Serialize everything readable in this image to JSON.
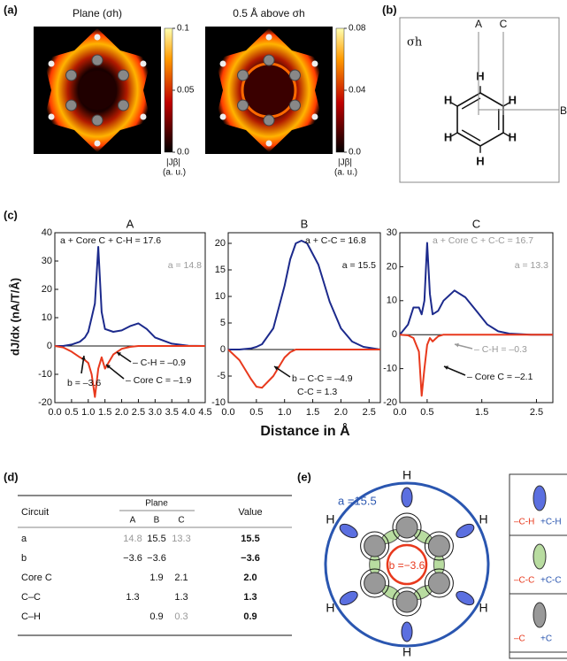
{
  "panel_a": {
    "label": "(a)",
    "maps": [
      {
        "title": "Plane (σh)",
        "colorbar": {
          "lim": [
            0,
            0.1
          ],
          "ticks": [
            0.1,
            0.05,
            {
              "value": 0,
              "label": "0.0"
            }
          ],
          "label": "|Jβ|",
          "unit": "(a. u.)"
        }
      },
      {
        "title": "0.5 Å above σh",
        "colorbar": {
          "lim": [
            0,
            0.08
          ],
          "ticks": [
            0.08,
            0.04,
            {
              "value": 0,
              "label": "0.0"
            }
          ],
          "label": "|Jβ|",
          "unit": "(a. u.)"
        }
      }
    ]
  },
  "panel_b": {
    "label": "(b)",
    "plane": "σh",
    "cuts": [
      "A",
      "C",
      "B"
    ],
    "atoms": [
      "H",
      "H",
      "H",
      "H",
      "H",
      "H"
    ]
  },
  "panel_c": {
    "label": "(c)",
    "y_label": "dJ/dx (nA/T/Å)",
    "x_label": "Distance in Å"
  },
  "chart_data": [
    {
      "type": "line",
      "title": "A",
      "xlim": [
        0,
        4.5
      ],
      "ylim": [
        -20,
        40
      ],
      "xticks": [
        {
          "value": 0,
          "label": "0.0"
        },
        {
          "value": 0.5,
          "label": "0.5"
        },
        {
          "value": 1,
          "label": "1.0"
        },
        {
          "value": 1.5,
          "label": "1.5"
        },
        {
          "value": 2,
          "label": "2.0"
        },
        {
          "value": 2.5,
          "label": "2.5"
        },
        {
          "value": 3,
          "label": "3.0"
        },
        {
          "value": 3.5,
          "label": "3.5"
        },
        {
          "value": 4,
          "label": "4.0"
        },
        {
          "value": 4.5,
          "label": "4.5"
        }
      ],
      "yticks": [
        -20,
        -10,
        0,
        10,
        20,
        30,
        40
      ],
      "x": [
        0,
        0.25,
        0.5,
        0.75,
        0.9,
        1.0,
        1.1,
        1.2,
        1.3,
        1.4,
        1.5,
        1.75,
        2.0,
        2.25,
        2.5,
        2.75,
        3.0,
        3.5,
        4.0,
        4.5
      ],
      "series": [
        {
          "color": "#1c2a8c",
          "values": [
            0,
            0,
            0.5,
            1.5,
            3,
            5,
            10,
            15,
            35,
            12,
            6,
            5,
            5.5,
            7,
            8,
            6,
            3,
            0.8,
            0.1,
            0
          ]
        },
        {
          "color": "#e8391d",
          "values": [
            0,
            -0.5,
            -2,
            -4,
            -5,
            -6,
            -10,
            -18,
            -8,
            -4,
            -8,
            -3,
            -1,
            -0.3,
            0,
            0,
            0,
            0,
            0,
            0
          ]
        }
      ],
      "annotations": [
        {
          "text": "a + Core C + C-H = 17.6",
          "color": "#111111"
        },
        {
          "text": "a = 14.8",
          "color": "#999999"
        },
        {
          "text": "– C-H = –0.9",
          "color": "#111111"
        },
        {
          "text": "– Core C = –1.9",
          "color": "#111111"
        },
        {
          "text": "b = –3.6",
          "color": "#111111"
        }
      ]
    },
    {
      "type": "line",
      "title": "B",
      "xlim": [
        0,
        2.7
      ],
      "ylim": [
        -10,
        22
      ],
      "xticks": [
        {
          "value": 0,
          "label": "0.0"
        },
        {
          "value": 0.5,
          "label": "0.5"
        },
        {
          "value": 1,
          "label": "1.0"
        },
        {
          "value": 1.5,
          "label": "1.5"
        },
        {
          "value": 2,
          "label": "2.0"
        },
        {
          "value": 2.5,
          "label": "2.5"
        }
      ],
      "yticks": [
        -10,
        -5,
        0,
        5,
        10,
        15,
        20
      ],
      "x": [
        0,
        0.2,
        0.4,
        0.5,
        0.6,
        0.8,
        1.0,
        1.1,
        1.2,
        1.3,
        1.4,
        1.6,
        1.8,
        2.0,
        2.2,
        2.4,
        2.7
      ],
      "series": [
        {
          "color": "#1c2a8c",
          "values": [
            0,
            0,
            0.2,
            0.5,
            1,
            4,
            12,
            17,
            20,
            20.5,
            20,
            16,
            9,
            4,
            1.5,
            0.5,
            0
          ]
        },
        {
          "color": "#e8391d",
          "values": [
            0,
            -2,
            -5.5,
            -7,
            -7.2,
            -5,
            -1.5,
            -0.5,
            0,
            0,
            0,
            0,
            0,
            0,
            0,
            0,
            0
          ]
        }
      ],
      "annotations": [
        {
          "text": "a + C-C = 16.8",
          "color": "#111111"
        },
        {
          "text": "a = 15.5",
          "color": "#111111"
        },
        {
          "text": "b – C-C = –4.9",
          "color": "#111111"
        },
        {
          "text": "C-C =  1.3",
          "color": "#111111"
        }
      ]
    },
    {
      "type": "line",
      "title": "C",
      "xlim": [
        0,
        2.8
      ],
      "ylim": [
        -20,
        30
      ],
      "xticks": [
        {
          "value": 0,
          "label": "0.0"
        },
        {
          "value": 0.5,
          "label": "0.5"
        },
        {
          "value": 1.5,
          "label": "1.5"
        },
        {
          "value": 2.5,
          "label": "2.5"
        }
      ],
      "yticks": [
        -20,
        -10,
        0,
        10,
        20,
        30
      ],
      "x": [
        0,
        0.15,
        0.25,
        0.35,
        0.4,
        0.45,
        0.5,
        0.55,
        0.6,
        0.7,
        0.8,
        1.0,
        1.2,
        1.4,
        1.6,
        1.8,
        2.0,
        2.4,
        2.8
      ],
      "series": [
        {
          "color": "#1c2a8c",
          "values": [
            0,
            3,
            8,
            8,
            6,
            10,
            27,
            12,
            6,
            7,
            10,
            13,
            11,
            7,
            3,
            1,
            0.3,
            0,
            0
          ]
        },
        {
          "color": "#e8391d",
          "values": [
            0,
            -0.2,
            -1,
            -5,
            -18,
            -10,
            -3,
            -1,
            -2,
            -0.5,
            0,
            0,
            0,
            0,
            0,
            0,
            0,
            0,
            0
          ]
        }
      ],
      "annotations": [
        {
          "text": "a + Core C + C-C = 16.7",
          "color": "#999999"
        },
        {
          "text": "a = 13.3",
          "color": "#999999"
        },
        {
          "text": "– C-H = –0.3",
          "color": "#999999"
        },
        {
          "text": "– Core C = –2.1",
          "color": "#111111"
        }
      ]
    }
  ],
  "panel_d": {
    "label": "(d)",
    "table": {
      "header": [
        "Circuit",
        "Value"
      ],
      "group": "Plane",
      "columns": [
        "A",
        "B",
        "C"
      ],
      "rows": [
        [
          "a",
          {
            "text": "14.8",
            "color": "#999999"
          },
          "15.5",
          {
            "text": "13.3",
            "color": "#999999"
          },
          "15.5"
        ],
        [
          "b",
          "−3.6",
          "−3.6",
          null,
          "−3.6"
        ],
        [
          "Core C",
          null,
          "1.9",
          "2.1",
          "2.0"
        ],
        [
          "C–C",
          "1.3",
          null,
          "1.3",
          "1.3"
        ],
        [
          "C–H",
          null,
          "0.9",
          {
            "text": "0.3",
            "color": "#999999"
          },
          "0.9"
        ]
      ]
    }
  },
  "panel_e": {
    "label": "(e)",
    "a": "a =15.5",
    "b": "b =−3.6",
    "atoms": [
      "H",
      "H",
      "H",
      "H",
      "H",
      "H"
    ],
    "side": [
      "–C-H",
      "+C-H",
      "–C-C",
      "+C-C",
      "–C",
      "+C"
    ]
  }
}
